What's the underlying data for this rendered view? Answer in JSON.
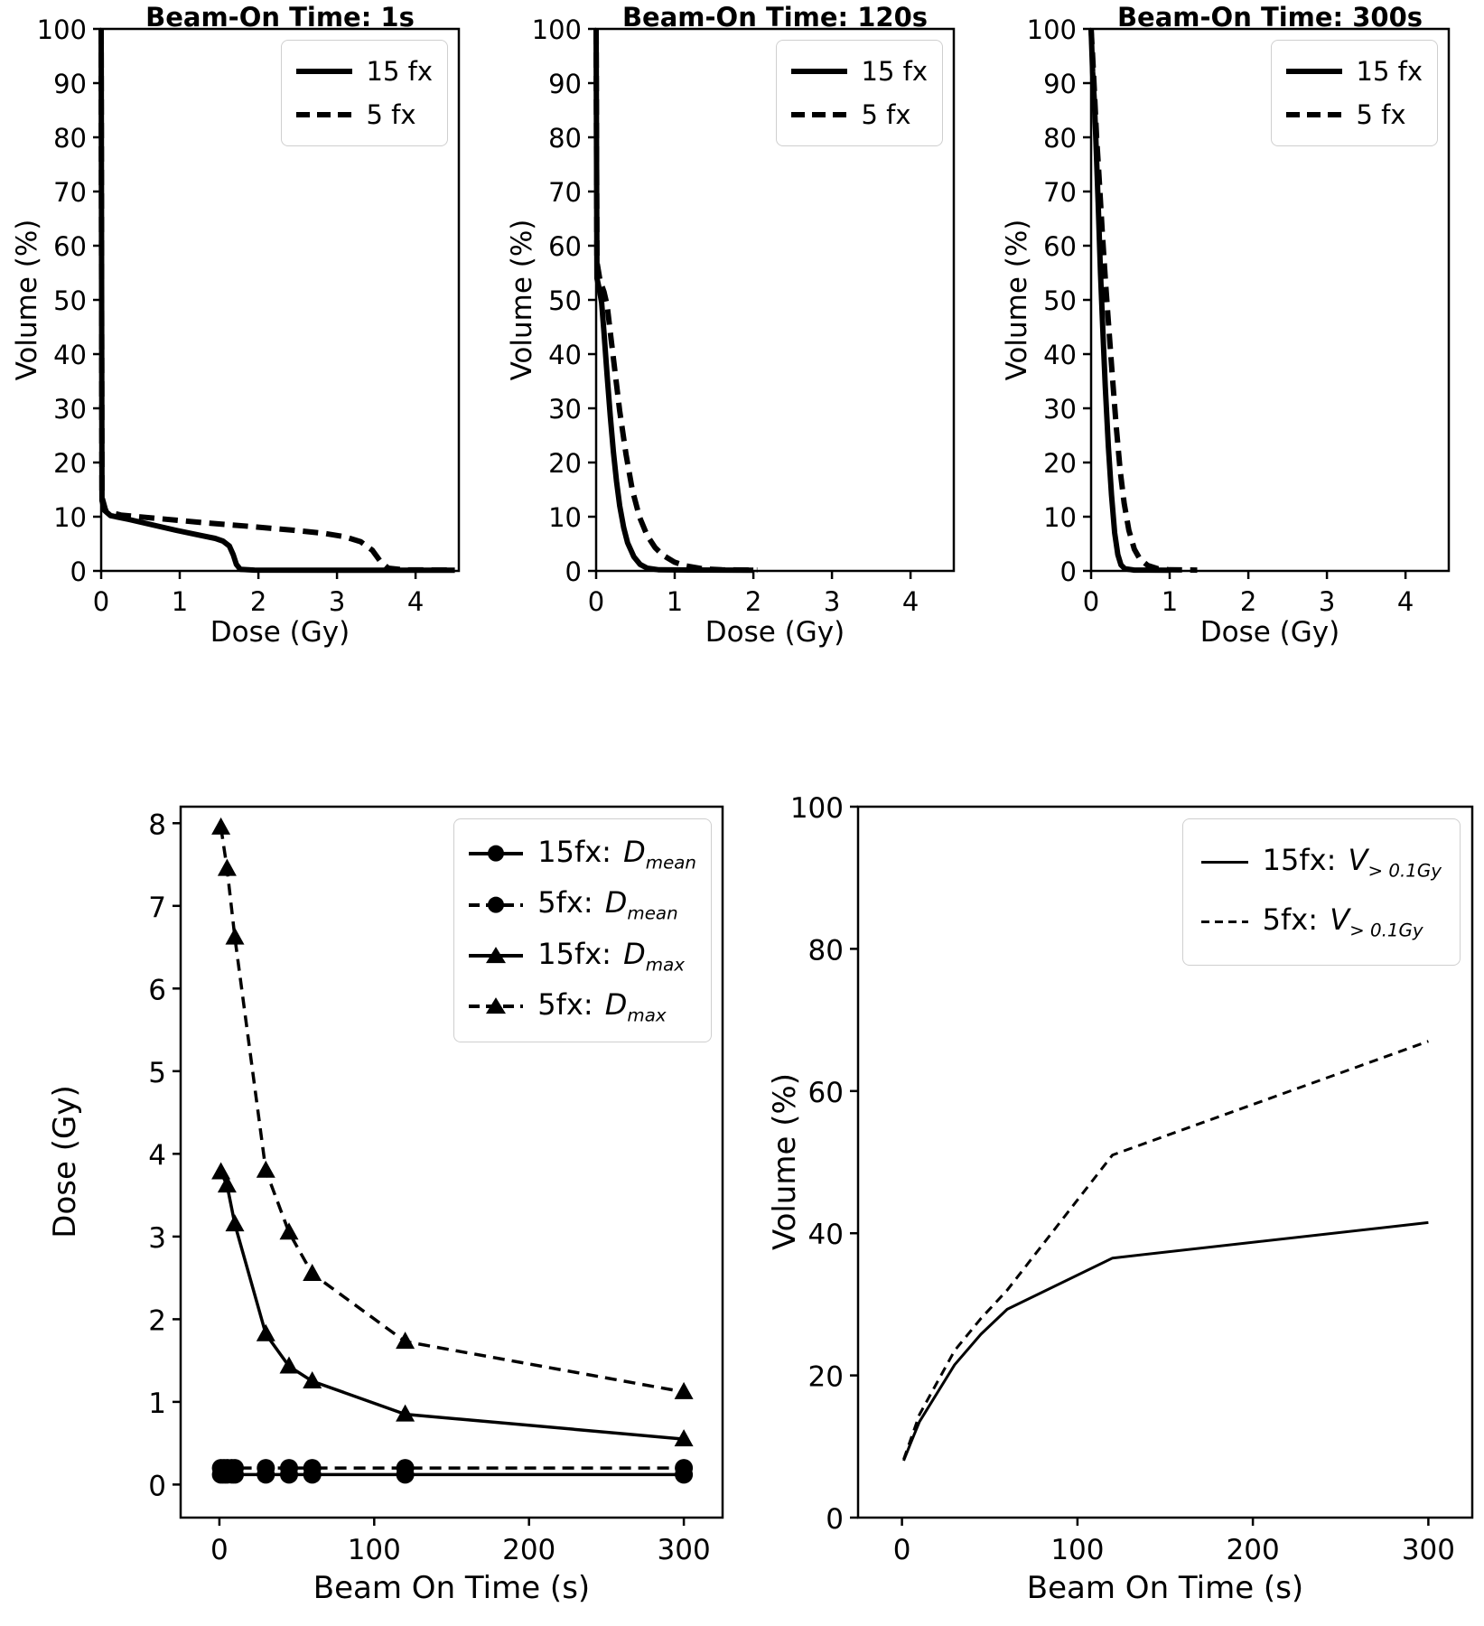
{
  "figure": {
    "background": "#ffffff",
    "line_color": "#000000"
  },
  "chart_data": [
    {
      "id": "dvh1",
      "type": "line",
      "title": "Beam-On Time: 1s",
      "xlabel": "Dose (Gy)",
      "ylabel": "Volume (%)",
      "xlim": [
        0,
        4.55
      ],
      "ylim": [
        0,
        100
      ],
      "xticks": [
        0,
        1,
        2,
        3,
        4
      ],
      "yticks": [
        0,
        10,
        20,
        30,
        40,
        50,
        60,
        70,
        80,
        90,
        100
      ],
      "grid": false,
      "legend_position": "upper right",
      "legend": [
        {
          "label": "15 fx",
          "style": "solid"
        },
        {
          "label": "5 fx",
          "style": "dashed"
        }
      ],
      "series": [
        {
          "name": "15fx",
          "style": "solid",
          "points": [
            [
              0,
              100
            ],
            [
              0.01,
              13
            ],
            [
              0.04,
              11.2
            ],
            [
              0.12,
              10.2
            ],
            [
              0.35,
              9.5
            ],
            [
              0.65,
              8.5
            ],
            [
              0.95,
              7.5
            ],
            [
              1.25,
              6.6
            ],
            [
              1.45,
              6.0
            ],
            [
              1.55,
              5.5
            ],
            [
              1.63,
              4.6
            ],
            [
              1.68,
              3.0
            ],
            [
              1.72,
              1.2
            ],
            [
              1.77,
              0.3
            ],
            [
              1.95,
              0.15
            ],
            [
              4.5,
              0.12
            ]
          ]
        },
        {
          "name": "5fx",
          "style": "dashed",
          "points": [
            [
              0,
              100
            ],
            [
              0.01,
              13.6
            ],
            [
              0.06,
              11.0
            ],
            [
              0.25,
              10.3
            ],
            [
              0.7,
              9.7
            ],
            [
              1.3,
              8.9
            ],
            [
              1.9,
              8.2
            ],
            [
              2.45,
              7.5
            ],
            [
              2.85,
              6.9
            ],
            [
              3.1,
              6.3
            ],
            [
              3.3,
              5.4
            ],
            [
              3.45,
              3.8
            ],
            [
              3.55,
              1.8
            ],
            [
              3.65,
              0.5
            ],
            [
              3.85,
              0.2
            ],
            [
              4.5,
              0.15
            ]
          ]
        }
      ]
    },
    {
      "id": "dvh120",
      "type": "line",
      "title": "Beam-On Time: 120s",
      "xlabel": "Dose (Gy)",
      "ylabel": "Volume (%)",
      "xlim": [
        0,
        4.55
      ],
      "ylim": [
        0,
        100
      ],
      "xticks": [
        0,
        1,
        2,
        3,
        4
      ],
      "yticks": [
        0,
        10,
        20,
        30,
        40,
        50,
        60,
        70,
        80,
        90,
        100
      ],
      "grid": false,
      "legend_position": "upper right",
      "legend": [
        {
          "label": "15 fx",
          "style": "solid"
        },
        {
          "label": "5 fx",
          "style": "dashed"
        }
      ],
      "series": [
        {
          "name": "15fx",
          "style": "solid",
          "points": [
            [
              0,
              100
            ],
            [
              0.01,
              54
            ],
            [
              0.04,
              52
            ],
            [
              0.07,
              49.5
            ],
            [
              0.1,
              44
            ],
            [
              0.14,
              36
            ],
            [
              0.18,
              28.5
            ],
            [
              0.22,
              22
            ],
            [
              0.26,
              16.5
            ],
            [
              0.3,
              12
            ],
            [
              0.35,
              8
            ],
            [
              0.4,
              5.2
            ],
            [
              0.48,
              2.6
            ],
            [
              0.56,
              1.2
            ],
            [
              0.65,
              0.5
            ],
            [
              0.8,
              0.2
            ],
            [
              2.0,
              0.12
            ]
          ]
        },
        {
          "name": "5fx",
          "style": "dashed",
          "points": [
            [
              0,
              100
            ],
            [
              0.01,
              57
            ],
            [
              0.05,
              53.5
            ],
            [
              0.1,
              51.5
            ],
            [
              0.14,
              49
            ],
            [
              0.18,
              44
            ],
            [
              0.23,
              38
            ],
            [
              0.3,
              29.5
            ],
            [
              0.38,
              21.5
            ],
            [
              0.46,
              15
            ],
            [
              0.55,
              10
            ],
            [
              0.65,
              6.5
            ],
            [
              0.75,
              4.3
            ],
            [
              0.85,
              2.9
            ],
            [
              1.0,
              1.6
            ],
            [
              1.15,
              0.9
            ],
            [
              1.35,
              0.4
            ],
            [
              1.6,
              0.2
            ],
            [
              2.05,
              0.15
            ]
          ]
        }
      ]
    },
    {
      "id": "dvh300",
      "type": "line",
      "title": "Beam-On Time: 300s",
      "xlabel": "Dose (Gy)",
      "ylabel": "Volume (%)",
      "xlim": [
        0,
        4.55
      ],
      "ylim": [
        0,
        100
      ],
      "xticks": [
        0,
        1,
        2,
        3,
        4
      ],
      "yticks": [
        0,
        10,
        20,
        30,
        40,
        50,
        60,
        70,
        80,
        90,
        100
      ],
      "grid": false,
      "legend_position": "upper right",
      "legend": [
        {
          "label": "15 fx",
          "style": "solid"
        },
        {
          "label": "5 fx",
          "style": "dashed"
        }
      ],
      "series": [
        {
          "name": "15fx",
          "style": "solid",
          "points": [
            [
              0,
              100
            ],
            [
              0.02,
              92
            ],
            [
              0.04,
              87
            ],
            [
              0.06,
              80
            ],
            [
              0.09,
              68
            ],
            [
              0.12,
              55
            ],
            [
              0.15,
              44
            ],
            [
              0.18,
              34
            ],
            [
              0.22,
              23
            ],
            [
              0.26,
              14
            ],
            [
              0.3,
              7
            ],
            [
              0.34,
              3
            ],
            [
              0.38,
              1.1
            ],
            [
              0.43,
              0.4
            ],
            [
              0.55,
              0.15
            ],
            [
              1.0,
              0.12
            ]
          ]
        },
        {
          "name": "5fx",
          "style": "dashed",
          "points": [
            [
              0,
              100
            ],
            [
              0.02,
              95
            ],
            [
              0.04,
              89
            ],
            [
              0.07,
              80
            ],
            [
              0.1,
              73
            ],
            [
              0.14,
              63
            ],
            [
              0.18,
              54
            ],
            [
              0.22,
              46
            ],
            [
              0.27,
              36
            ],
            [
              0.32,
              26.5
            ],
            [
              0.37,
              18.5
            ],
            [
              0.42,
              12.5
            ],
            [
              0.48,
              7.5
            ],
            [
              0.55,
              4
            ],
            [
              0.62,
              2.2
            ],
            [
              0.72,
              1.0
            ],
            [
              0.85,
              0.4
            ],
            [
              1.0,
              0.2
            ],
            [
              1.35,
              0.15
            ]
          ]
        }
      ]
    },
    {
      "id": "dose",
      "type": "line",
      "title": "",
      "xlabel": "Beam On Time (s)",
      "ylabel": "Dose (Gy)",
      "xlim": [
        -25,
        325
      ],
      "ylim": [
        -0.4,
        8.2
      ],
      "xticks": [
        0,
        100,
        200,
        300
      ],
      "yticks": [
        0,
        1,
        2,
        3,
        4,
        5,
        6,
        7,
        8
      ],
      "grid": false,
      "legend_position": "upper right",
      "legend": [
        {
          "prefix": "15fx: ",
          "sym": "D",
          "sub": "mean",
          "style": "solid",
          "marker": "circle"
        },
        {
          "prefix": "5fx: ",
          "sym": "D",
          "sub": "mean",
          "style": "dashed",
          "marker": "circle"
        },
        {
          "prefix": "15fx: ",
          "sym": "D",
          "sub": "max",
          "style": "solid",
          "marker": "triangle"
        },
        {
          "prefix": "5fx: ",
          "sym": "D",
          "sub": "max",
          "style": "dashed",
          "marker": "triangle"
        }
      ],
      "series": [
        {
          "name": "5fx-Dmax",
          "style": "dashed",
          "marker": "triangle",
          "points": [
            [
              1,
              7.95
            ],
            [
              5,
              7.45
            ],
            [
              10,
              6.62
            ],
            [
              30,
              3.8
            ],
            [
              45,
              3.05
            ],
            [
              60,
              2.55
            ],
            [
              120,
              1.73
            ],
            [
              300,
              1.12
            ]
          ]
        },
        {
          "name": "15fx-Dmax",
          "style": "solid",
          "marker": "triangle",
          "points": [
            [
              1,
              3.78
            ],
            [
              5,
              3.62
            ],
            [
              10,
              3.15
            ],
            [
              30,
              1.82
            ],
            [
              45,
              1.43
            ],
            [
              60,
              1.25
            ],
            [
              120,
              0.85
            ],
            [
              300,
              0.55
            ]
          ]
        },
        {
          "name": "5fx-Dmean",
          "style": "dashed",
          "marker": "circle",
          "points": [
            [
              1,
              0.2
            ],
            [
              3,
              0.2
            ],
            [
              5,
              0.2
            ],
            [
              8,
              0.2
            ],
            [
              10,
              0.2
            ],
            [
              30,
              0.2
            ],
            [
              45,
              0.2
            ],
            [
              60,
              0.2
            ],
            [
              120,
              0.2
            ],
            [
              300,
              0.2
            ]
          ]
        },
        {
          "name": "15fx-Dmean",
          "style": "solid",
          "marker": "circle",
          "points": [
            [
              1,
              0.12
            ],
            [
              3,
              0.12
            ],
            [
              5,
              0.12
            ],
            [
              8,
              0.12
            ],
            [
              10,
              0.12
            ],
            [
              30,
              0.12
            ],
            [
              45,
              0.12
            ],
            [
              60,
              0.12
            ],
            [
              120,
              0.12
            ],
            [
              300,
              0.12
            ]
          ]
        }
      ]
    },
    {
      "id": "volume",
      "type": "line",
      "title": "",
      "xlabel": "Beam On Time (s)",
      "ylabel": "Volume (%)",
      "xlim": [
        -25,
        325
      ],
      "ylim": [
        0,
        100
      ],
      "xticks": [
        0,
        100,
        200,
        300
      ],
      "yticks": [
        0,
        20,
        40,
        60,
        80,
        100
      ],
      "grid": false,
      "legend_position": "upper right",
      "legend": [
        {
          "prefix": "15fx: ",
          "sym": "V",
          "sub": "> 0.1Gy",
          "style": "solid"
        },
        {
          "prefix": "5fx: ",
          "sym": "V",
          "sub": "> 0.1Gy",
          "style": "dashed"
        }
      ],
      "series": [
        {
          "name": "15fx-V",
          "style": "solid",
          "points": [
            [
              1,
              8
            ],
            [
              5,
              10.5
            ],
            [
              10,
              13.5
            ],
            [
              30,
              21.5
            ],
            [
              45,
              25.8
            ],
            [
              60,
              29.3
            ],
            [
              120,
              36.5
            ],
            [
              300,
              41.5
            ]
          ]
        },
        {
          "name": "5fx-V",
          "style": "dashed",
          "points": [
            [
              1,
              8.2
            ],
            [
              5,
              11
            ],
            [
              10,
              14.5
            ],
            [
              30,
              23.5
            ],
            [
              45,
              28
            ],
            [
              60,
              32
            ],
            [
              120,
              51
            ],
            [
              300,
              67
            ]
          ]
        }
      ]
    }
  ]
}
